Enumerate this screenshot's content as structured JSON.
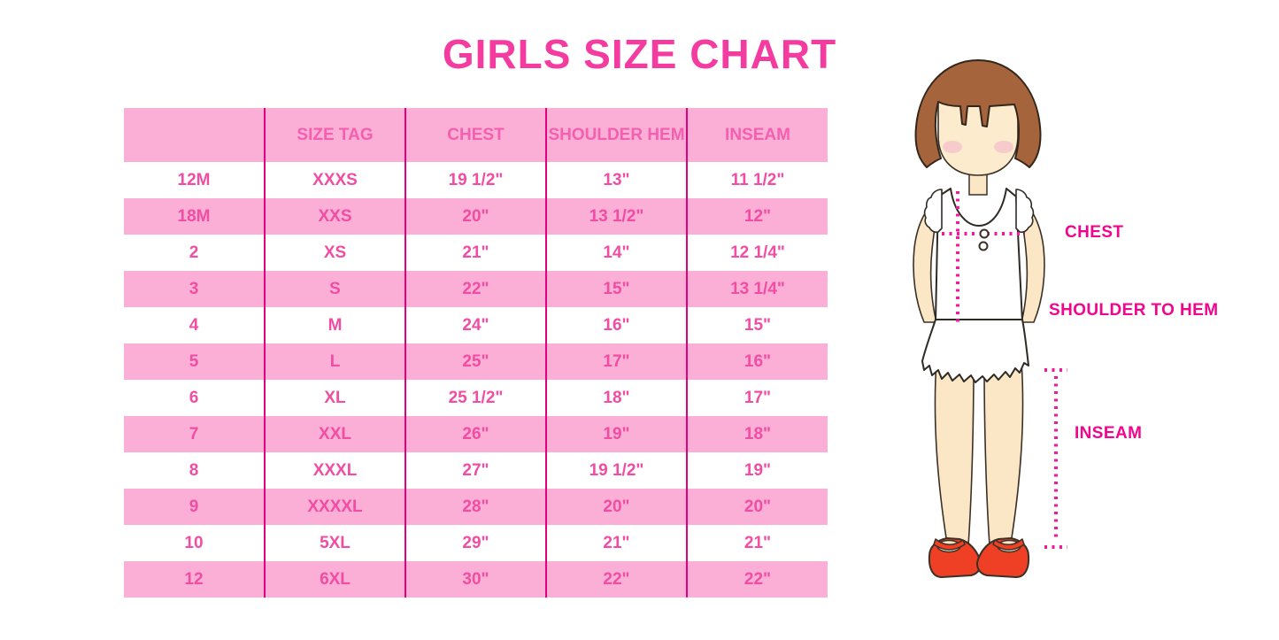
{
  "title": "GIRLS SIZE CHART",
  "chart_data": {
    "type": "table",
    "title": "GIRLS SIZE CHART",
    "columns": [
      "",
      "SIZE TAG",
      "CHEST",
      "SHOULDER HEM",
      "INSEAM"
    ],
    "rows": [
      [
        "12M",
        "XXXS",
        "19 1/2\"",
        "13\"",
        "11 1/2\""
      ],
      [
        "18M",
        "XXS",
        "20\"",
        "13 1/2\"",
        "12\""
      ],
      [
        "2",
        "XS",
        "21\"",
        "14\"",
        "12 1/4\""
      ],
      [
        "3",
        "S",
        "22\"",
        "15\"",
        "13 1/4\""
      ],
      [
        "4",
        "M",
        "24\"",
        "16\"",
        "15\""
      ],
      [
        "5",
        "L",
        "25\"",
        "17\"",
        "16\""
      ],
      [
        "6",
        "XL",
        "25 1/2\"",
        "18\"",
        "17\""
      ],
      [
        "7",
        "XXL",
        "26\"",
        "19\"",
        "18\""
      ],
      [
        "8",
        "XXXL",
        "27\"",
        "19 1/2\"",
        "19\""
      ],
      [
        "9",
        "XXXXL",
        "28\"",
        "20\"",
        "20\""
      ],
      [
        "10",
        "5XL",
        "29\"",
        "21\"",
        "21\""
      ],
      [
        "12",
        "6XL",
        "30\"",
        "22\"",
        "22\""
      ]
    ]
  },
  "figure": {
    "labels": {
      "chest": "CHEST",
      "shoulder_to_hem": "SHOULDER TO HEM",
      "inseam": "INSEAM"
    }
  },
  "colors": {
    "title_pink": "#F43BA0",
    "row_pink": "#FBAED6",
    "cell_text_pink": "#F04DA3",
    "header_text_pink": "#F45FB0",
    "grid_line_magenta": "#E2007D",
    "label_magenta": "#F2058D",
    "dotted_line_pink": "#F2199B",
    "hair_brown": "#A5643C",
    "skin": "#FBE7C5",
    "blush": "#F5BFCB",
    "shoe_red": "#EF4026"
  }
}
